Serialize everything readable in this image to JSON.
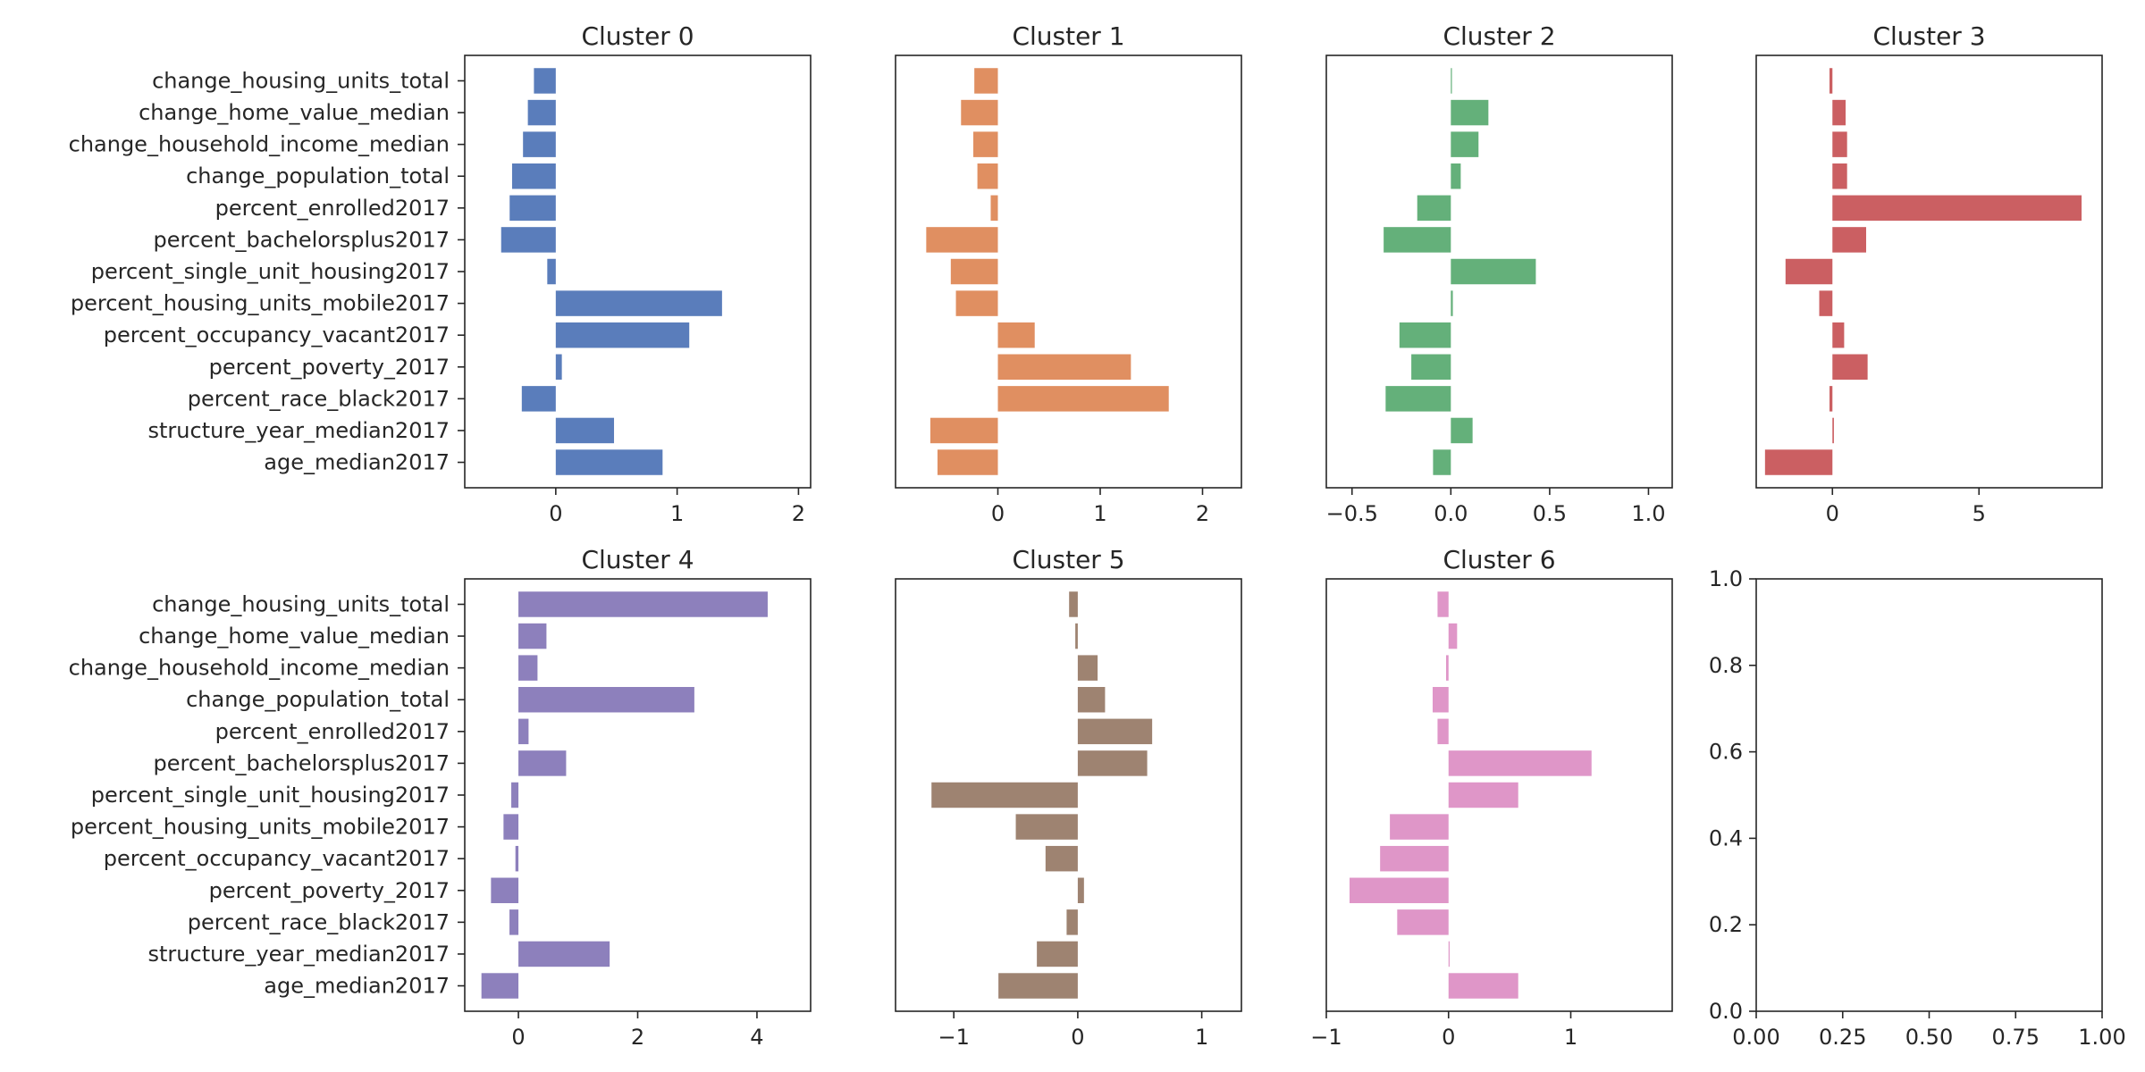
{
  "chart_data": {
    "type": "bar",
    "orientation": "horizontal",
    "grid": false,
    "categories": [
      "change_housing_units_total",
      "change_home_value_median",
      "change_household_income_median",
      "change_population_total",
      "percent_enrolled2017",
      "percent_bachelorsplus2017",
      "percent_single_unit_housing2017",
      "percent_housing_units_mobile2017",
      "percent_occupancy_vacant2017",
      "percent_poverty_2017",
      "percent_race_black2017",
      "structure_year_median2017",
      "age_median2017"
    ],
    "panels": [
      {
        "title": "Cluster 0",
        "color": "#5a7dbb",
        "xlim": [
          -0.75,
          2.1
        ],
        "xticks": [
          0,
          1,
          2
        ],
        "values": [
          -0.18,
          -0.23,
          -0.27,
          -0.36,
          -0.38,
          -0.45,
          -0.07,
          1.37,
          1.1,
          0.05,
          -0.28,
          0.48,
          0.88
        ]
      },
      {
        "title": "Cluster 1",
        "color": "#e08f61",
        "xlim": [
          -1.0,
          2.38
        ],
        "xticks": [
          0,
          1,
          2
        ],
        "values": [
          -0.23,
          -0.36,
          -0.24,
          -0.2,
          -0.07,
          -0.7,
          -0.46,
          -0.41,
          0.36,
          1.3,
          1.67,
          -0.66,
          -0.59
        ]
      },
      {
        "title": "Cluster 2",
        "color": "#64b07a",
        "xlim": [
          -0.63,
          1.12
        ],
        "xticks": [
          -0.5,
          0.0,
          0.5,
          1.0
        ],
        "values": [
          0.0,
          0.19,
          0.14,
          0.05,
          -0.17,
          -0.34,
          0.43,
          0.01,
          -0.26,
          -0.2,
          -0.33,
          0.11,
          -0.09
        ]
      },
      {
        "title": "Cluster 3",
        "color": "#cb5f62",
        "xlim": [
          -2.6,
          9.2
        ],
        "xticks": [
          0,
          5
        ],
        "values": [
          -0.1,
          0.45,
          0.5,
          0.5,
          8.5,
          1.15,
          -1.6,
          -0.45,
          0.4,
          1.2,
          -0.1,
          0.05,
          -2.3
        ]
      },
      {
        "title": "Cluster 4",
        "color": "#8d80bc",
        "xlim": [
          -0.9,
          4.9
        ],
        "xticks": [
          0,
          2,
          4
        ],
        "values": [
          4.18,
          0.47,
          0.32,
          2.95,
          0.17,
          0.8,
          -0.12,
          -0.25,
          -0.05,
          -0.46,
          -0.15,
          1.53,
          -0.62
        ]
      },
      {
        "title": "Cluster 5",
        "color": "#9e8371",
        "xlim": [
          -1.47,
          1.32
        ],
        "xticks": [
          -1,
          0,
          1
        ],
        "values": [
          -0.07,
          -0.02,
          0.16,
          0.22,
          0.6,
          0.56,
          -1.18,
          -0.5,
          -0.26,
          0.05,
          -0.09,
          -0.33,
          -0.64
        ]
      },
      {
        "title": "Cluster 6",
        "color": "#df96c8",
        "xlim": [
          -1.0,
          1.83
        ],
        "xticks": [
          -1,
          0,
          1
        ],
        "values": [
          -0.09,
          0.07,
          -0.02,
          -0.13,
          -0.09,
          1.17,
          0.57,
          -0.48,
          -0.56,
          -0.81,
          -0.42,
          0.0,
          0.57
        ]
      }
    ],
    "empty_panel": {
      "title": "",
      "xlim": [
        0,
        1
      ],
      "ylim": [
        0,
        1
      ],
      "xticks": [
        0.0,
        0.25,
        0.5,
        0.75,
        1.0
      ],
      "yticks": [
        0.0,
        0.2,
        0.4,
        0.6,
        0.8,
        1.0
      ]
    }
  }
}
